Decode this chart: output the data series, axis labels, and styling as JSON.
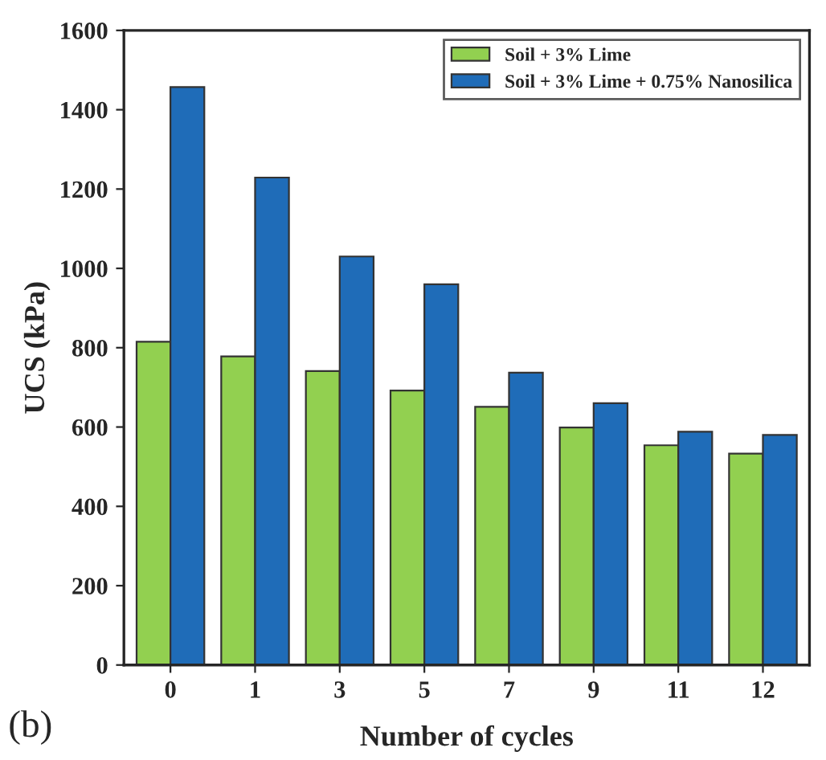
{
  "chart_data": {
    "type": "bar",
    "xlabel": "Number of cycles",
    "ylabel": "UCS (kPa)",
    "categories": [
      "0",
      "1",
      "3",
      "5",
      "7",
      "9",
      "11",
      "12"
    ],
    "series": [
      {
        "name": "Soil + 3% Lime",
        "color": "#92d050",
        "values": [
          815,
          778,
          741,
          692,
          651,
          599,
          554,
          533
        ]
      },
      {
        "name": "Soil + 3% Lime + 0.75% Nanosilica",
        "color": "#1f6cb8",
        "values": [
          1457,
          1229,
          1030,
          960,
          737,
          660,
          588,
          580
        ]
      }
    ],
    "ylim": [
      0,
      1600
    ],
    "yticks": [
      0,
      200,
      400,
      600,
      800,
      1000,
      1200,
      1400,
      1600
    ],
    "legend": "top right",
    "grid": false,
    "annotations": [
      "(b)"
    ]
  }
}
